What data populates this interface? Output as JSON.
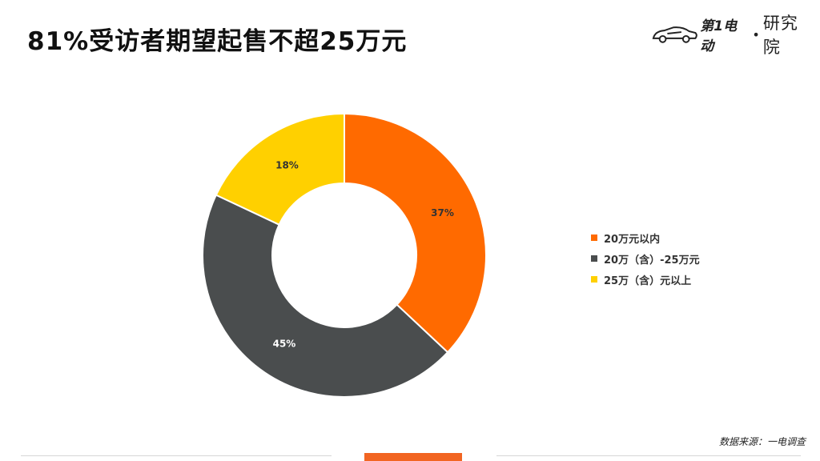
{
  "title": "81%受访者期望起售不超25万元",
  "logo": {
    "brand": "第1电动",
    "separator": "•",
    "institute": "研究院",
    "text": "第1电动•研究院"
  },
  "source": "数据来源：一电调查",
  "colors": {
    "orange": "#FF6A00",
    "gray": "#4A4D4E",
    "yellow": "#FFD000",
    "accent": "#F26522"
  },
  "chart_data": {
    "type": "pie",
    "variant": "donut",
    "title": "",
    "legend_position": "right",
    "slices": [
      {
        "label": "20万元以内",
        "value": 37,
        "display": "37%",
        "color": "#FF6A00"
      },
      {
        "label": "20万（含）-25万元",
        "value": 45,
        "display": "45%",
        "color": "#4A4D4E"
      },
      {
        "label": "25万（含）元以上",
        "value": 18,
        "display": "18%",
        "color": "#FFD000"
      }
    ]
  }
}
